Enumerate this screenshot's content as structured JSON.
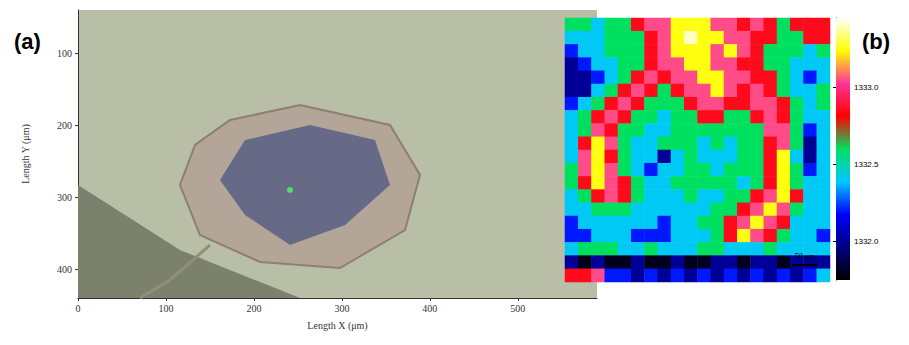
{
  "chart_data": [
    {
      "type": "image",
      "panel_label": "(a)",
      "x_label": "Length X (μm)",
      "y_label": "Length Y (μm)",
      "xlim": [
        0,
        590
      ],
      "xticks": [
        0,
        100,
        200,
        300,
        400,
        500
      ],
      "ylim": [
        40,
        440
      ],
      "yticks": [
        100,
        200,
        300,
        400
      ]
    },
    {
      "type": "heatmap",
      "panel_label": "(b)",
      "tick_labels": false,
      "annotations": [
        "50 μm"
      ],
      "colorbar": {
        "range": [
          1331.75,
          1333.45
        ],
        "ticks": [
          {
            "value": 1332,
            "label": "1332.0"
          },
          1332.5,
          {
            "value": 1333,
            "label": "1333.0"
          }
        ]
      },
      "cells": [
        [
          1332.6,
          1332.6,
          1332.4,
          1332.6,
          1332.6,
          1332.85,
          1333.05,
          1333.05,
          1333.25,
          1333.25,
          1333.25,
          1333.05,
          1333.05,
          1332.85,
          1333.05,
          1332.85,
          1332.6,
          1332.85,
          1332.85,
          1332.85
        ],
        [
          1332.4,
          1332.4,
          1332.4,
          1332.6,
          1332.6,
          1332.6,
          1332.85,
          1333.05,
          1333.25,
          1333.4,
          1333.25,
          1333.25,
          1333.05,
          1333.05,
          1332.85,
          1332.85,
          1332.6,
          1332.6,
          1332.85,
          1332.85
        ],
        [
          1332.2,
          1332.4,
          1332.4,
          1332.6,
          1332.6,
          1332.6,
          1332.85,
          1333.05,
          1333.25,
          1333.25,
          1333.25,
          1333.05,
          1333.25,
          1333.05,
          1332.85,
          1332.6,
          1332.6,
          1332.6,
          1332.4,
          1332.6
        ],
        [
          1332,
          1332.2,
          1332.4,
          1332.4,
          1332.6,
          1332.6,
          1332.85,
          1333.05,
          1333.05,
          1333.25,
          1333.25,
          1333.05,
          1333.05,
          1332.85,
          1332.85,
          1332.6,
          1332.6,
          1332.4,
          1332.4,
          1332.4
        ],
        [
          1332,
          1332,
          1332.2,
          1332.4,
          1332.6,
          1332.85,
          1333.05,
          1332.85,
          1333.05,
          1333.05,
          1333.25,
          1333.25,
          1333.05,
          1333.05,
          1332.85,
          1332.85,
          1332.6,
          1332.4,
          1332.2,
          1332.4
        ],
        [
          1332,
          1332,
          1332.4,
          1332.6,
          1332.85,
          1333.05,
          1332.85,
          1332.6,
          1332.85,
          1333.05,
          1333.05,
          1333.25,
          1333.05,
          1332.85,
          1333.05,
          1332.85,
          1332.6,
          1332.4,
          1332.4,
          1332.6
        ],
        [
          1332.2,
          1332.4,
          1332.6,
          1332.85,
          1333.05,
          1332.85,
          1332.6,
          1332.6,
          1332.6,
          1332.85,
          1333.05,
          1333.05,
          1332.85,
          1332.85,
          1333.05,
          1333.05,
          1332.85,
          1332.6,
          1332.4,
          1332.6
        ],
        [
          1332.4,
          1332.6,
          1332.85,
          1333.05,
          1332.85,
          1332.6,
          1332.6,
          1332.4,
          1332.6,
          1332.6,
          1332.85,
          1332.85,
          1332.6,
          1332.6,
          1332.85,
          1333.05,
          1332.85,
          1332.6,
          1332.4,
          1332.4
        ],
        [
          1332.4,
          1332.6,
          1333.05,
          1332.85,
          1332.6,
          1332.6,
          1332.4,
          1332.4,
          1332.6,
          1332.6,
          1332.6,
          1332.6,
          1332.6,
          1332.6,
          1332.6,
          1333.05,
          1333.05,
          1332.6,
          1332.2,
          1332.4
        ],
        [
          1332.4,
          1332.85,
          1333.25,
          1333.05,
          1332.6,
          1332.4,
          1332.4,
          1332.6,
          1332.6,
          1332.6,
          1332.4,
          1332.6,
          1332.4,
          1332.6,
          1332.6,
          1332.85,
          1333.05,
          1332.6,
          1332,
          1332.4
        ],
        [
          1332.4,
          1333.05,
          1333.25,
          1332.85,
          1332.6,
          1332.4,
          1332.4,
          1332,
          1332.4,
          1332.6,
          1332.4,
          1332.4,
          1332.4,
          1332.6,
          1332.6,
          1332.85,
          1333.25,
          1332.4,
          1332,
          1332.4
        ],
        [
          1332.6,
          1333.05,
          1333.25,
          1333.05,
          1332.6,
          1332.4,
          1332.2,
          1332.4,
          1332.4,
          1332.6,
          1332.6,
          1332.4,
          1332.6,
          1332.6,
          1332.6,
          1332.85,
          1333.25,
          1332.6,
          1332.2,
          1332.4
        ],
        [
          1332.6,
          1332.85,
          1333.25,
          1333.05,
          1332.85,
          1332.6,
          1332.4,
          1332.4,
          1332.6,
          1332.6,
          1332.6,
          1332.6,
          1332.6,
          1332.4,
          1332.6,
          1332.85,
          1333.25,
          1332.6,
          1332.4,
          1332.4
        ],
        [
          1332.4,
          1332.6,
          1332.85,
          1333.05,
          1332.85,
          1332.6,
          1332.4,
          1332.4,
          1332.4,
          1332.6,
          1332.4,
          1332.4,
          1332.6,
          1332.6,
          1332.85,
          1333.05,
          1333.25,
          1332.85,
          1332.4,
          1332.4
        ],
        [
          1332.4,
          1332.4,
          1332.6,
          1332.6,
          1332.6,
          1332.4,
          1332.4,
          1332.4,
          1332.4,
          1332.4,
          1332.4,
          1332.6,
          1332.6,
          1332.85,
          1333.05,
          1333.25,
          1333.05,
          1332.6,
          1332.4,
          1332.4
        ],
        [
          1332.2,
          1332.4,
          1332.4,
          1332.4,
          1332.4,
          1332.4,
          1332.4,
          1332.2,
          1332.4,
          1332.4,
          1332.6,
          1332.6,
          1332.85,
          1333.05,
          1333.25,
          1333.05,
          1332.85,
          1332.4,
          1332.4,
          1332.4
        ],
        [
          1332.2,
          1332.2,
          1332.4,
          1332.4,
          1332.4,
          1332.2,
          1332.2,
          1332.2,
          1332.4,
          1332.4,
          1332.4,
          1332.6,
          1332.85,
          1333.25,
          1333.05,
          1332.85,
          1332.6,
          1332.4,
          1332.4,
          1332.2
        ],
        [
          1332.4,
          1332.6,
          1332.6,
          1332.6,
          1332.4,
          1332.4,
          1332.6,
          1332.4,
          1332.4,
          1332.4,
          1332.6,
          1332.6,
          1332.4,
          1332.4,
          1332.4,
          1332.6,
          1332.4,
          1332.4,
          1332.4,
          1332.4
        ],
        [
          1332,
          1331.8,
          1332,
          1331.8,
          1331.8,
          1332,
          1331.8,
          1331.8,
          1332,
          1331.8,
          1331.8,
          1332,
          1332,
          1331.8,
          1332,
          1332,
          1331.8,
          1332,
          1332,
          1332
        ],
        [
          1332.85,
          1332.85,
          1333.05,
          1332.2,
          1332.2,
          1332,
          1332.2,
          1332,
          1332.2,
          1332,
          1332.2,
          1332,
          1332.2,
          1332,
          1332.2,
          1332,
          1332.2,
          1332,
          1332.2,
          1332.4
        ]
      ]
    }
  ]
}
